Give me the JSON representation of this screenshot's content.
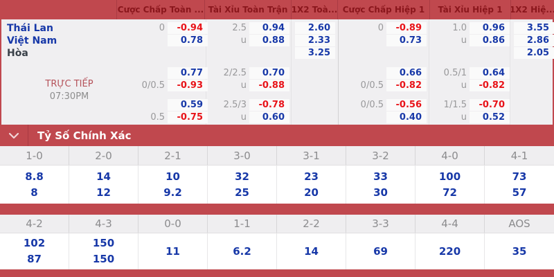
{
  "colors": {
    "bar_red": "#c0484e",
    "header_text_red": "#8a161c",
    "odds_blue": "#1738a8",
    "odds_red": "#e81319",
    "line_gray": "#98989a",
    "body_bg": "#f0eff1"
  },
  "header": {
    "columns": [
      "Cược Chấp Toàn ...",
      "Tài Xỉu Toàn Trận",
      "1X2 Toà...",
      "Cược Chấp Hiệp 1",
      "Tài Xỉu Hiệp 1",
      "1X2 Hiệ..."
    ]
  },
  "match": {
    "teams": [
      "Thái Lan",
      "Việt Nam",
      "Hòa"
    ],
    "live_label": "TRỰC TIẾP",
    "time": "07:30PM",
    "prematch_rows": [
      {
        "cells": [
          {
            "line": "0",
            "odds": "-0.94"
          },
          {
            "line": "2.5",
            "odds": "0.94"
          },
          {
            "odds": "2.60"
          },
          {
            "line": "0",
            "odds": "-0.89"
          },
          {
            "line": "1.0",
            "odds": "0.96"
          },
          {
            "odds": "3.55"
          }
        ]
      },
      {
        "cells": [
          {
            "odds": "0.78"
          },
          {
            "line": "u",
            "odds": "0.88"
          },
          {
            "odds": "2.33"
          },
          {
            "odds": "0.73"
          },
          {
            "line": "u",
            "odds": "0.86"
          },
          {
            "odds": "2.86"
          }
        ]
      },
      {
        "cells": [
          {},
          {},
          {
            "odds": "3.25"
          },
          {},
          {},
          {
            "odds": "2.05"
          }
        ]
      }
    ],
    "live_rows": [
      {
        "cells": [
          {
            "odds": "0.77"
          },
          {
            "line": "2/2.5",
            "odds": "0.70"
          },
          {},
          {
            "odds": "0.66"
          },
          {
            "line": "0.5/1",
            "odds": "0.64"
          },
          {}
        ]
      },
      {
        "cells": [
          {
            "line": "0/0.5",
            "odds": "-0.93"
          },
          {
            "line": "u",
            "odds": "-0.88"
          },
          {},
          {
            "line": "0/0.5",
            "odds": "-0.82"
          },
          {
            "line": "u",
            "odds": "-0.82"
          },
          {}
        ]
      },
      {
        "cells": [
          {
            "odds": "0.59"
          },
          {
            "line": "2.5/3",
            "odds": "-0.78"
          },
          {},
          {
            "line": "0/0.5",
            "odds": "-0.56"
          },
          {
            "line": "1/1.5",
            "odds": "-0.70"
          },
          {}
        ]
      },
      {
        "cells": [
          {
            "line": "0.5",
            "odds": "-0.75"
          },
          {
            "line": "u",
            "odds": "0.60"
          },
          {},
          {
            "odds": "0.40"
          },
          {
            "line": "u",
            "odds": "0.52"
          },
          {}
        ]
      }
    ]
  },
  "correct_score": {
    "title": "Tỷ Số Chính Xác",
    "chevron_icon": "chevron-down",
    "blocks": [
      {
        "headers": [
          "1-0",
          "2-0",
          "2-1",
          "3-0",
          "3-1",
          "3-2",
          "4-0",
          "4-1"
        ],
        "values": [
          [
            "8.8",
            "8"
          ],
          [
            "14",
            "12"
          ],
          [
            "10",
            "9.2"
          ],
          [
            "32",
            "25"
          ],
          [
            "23",
            "20"
          ],
          [
            "33",
            "30"
          ],
          [
            "100",
            "72"
          ],
          [
            "73",
            "57"
          ]
        ]
      },
      {
        "headers": [
          "4-2",
          "4-3",
          "0-0",
          "1-1",
          "2-2",
          "3-3",
          "4-4",
          "AOS"
        ],
        "values": [
          [
            "102",
            "87"
          ],
          [
            "150",
            "150"
          ],
          [
            "11"
          ],
          [
            "6.2"
          ],
          [
            "14"
          ],
          [
            "69"
          ],
          [
            "220"
          ],
          [
            "35"
          ]
        ]
      }
    ]
  }
}
